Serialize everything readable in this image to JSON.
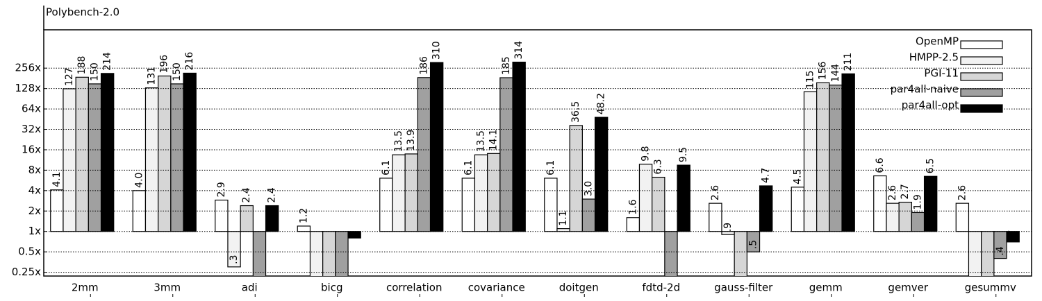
{
  "chart_data": {
    "type": "bar",
    "title": "Polybench-2.0",
    "log_scale": true,
    "log_base": 2,
    "grid": true,
    "legend": "upper right",
    "categories": [
      "2mm",
      "3mm",
      "adi",
      "bicg",
      "correlation",
      "covariance",
      "doitgen",
      "fdtd-2d",
      "gauss-filter",
      "gemm",
      "gemver",
      "gesummv"
    ],
    "series": [
      {
        "name": "OpenMP",
        "color": "#ffffff",
        "values": [
          4.1,
          4.0,
          2.9,
          1.2,
          6.1,
          6.1,
          6.1,
          1.6,
          2.6,
          4.5,
          6.6,
          2.6
        ],
        "value_labels": [
          "4.1",
          "4.0",
          "2.9",
          "1.2",
          "6.1",
          "6.1",
          "6.1",
          "1.6",
          "2.6",
          "4.5",
          "6.6",
          "2.6"
        ]
      },
      {
        "name": "HMPP-2.5",
        "color": "#f2f2f2",
        "values": [
          127,
          131,
          0.3,
          0.2,
          13.5,
          13.5,
          1.1,
          9.8,
          0.9,
          115,
          2.6,
          0.2
        ],
        "value_labels": [
          "127",
          "131",
          ".3",
          null,
          "13.5",
          "13.5",
          "1.1",
          "9.8",
          ".9",
          "115",
          "2.6",
          null
        ]
      },
      {
        "name": "PGI-11",
        "color": "#d6d6d6",
        "values": [
          188,
          196,
          2.4,
          0.2,
          13.9,
          14.1,
          36.5,
          6.3,
          0.2,
          156,
          2.7,
          0.2
        ],
        "value_labels": [
          "188",
          "196",
          "2.4",
          null,
          "13.9",
          "14.1",
          "36.5",
          "6.3",
          null,
          "156",
          "2.7",
          null
        ]
      },
      {
        "name": "par4all-naive",
        "color": "#a0a0a0",
        "values": [
          150,
          150,
          0.2,
          0.2,
          186,
          185,
          3.0,
          0.2,
          0.5,
          144,
          1.9,
          0.4
        ],
        "value_labels": [
          "150",
          "150",
          null,
          null,
          "186",
          "185",
          "3.0",
          null,
          ".5",
          "144",
          "1.9",
          ".4"
        ]
      },
      {
        "name": "par4all-opt",
        "color": "#000000",
        "values": [
          214,
          216,
          2.4,
          0.8,
          310,
          314,
          48.2,
          9.5,
          4.7,
          211,
          6.5,
          0.7
        ],
        "value_labels": [
          "214",
          "216",
          "2.4",
          null,
          "310",
          "314",
          "48.2",
          "9.5",
          "4.7",
          "211",
          "6.5",
          ".7"
        ]
      }
    ],
    "ylim": [
      0.22,
      940
    ],
    "yticks": [
      {
        "value": 0.25,
        "label": "0.25x"
      },
      {
        "value": 0.5,
        "label": "0.5x"
      },
      {
        "value": 1,
        "label": "1x"
      },
      {
        "value": 2,
        "label": "2x"
      },
      {
        "value": 4,
        "label": "4x"
      },
      {
        "value": 8,
        "label": "8x"
      },
      {
        "value": 16,
        "label": "16x"
      },
      {
        "value": 32,
        "label": "32x"
      },
      {
        "value": 64,
        "label": "64x"
      },
      {
        "value": 128,
        "label": "128x"
      },
      {
        "value": 256,
        "label": "256x"
      }
    ]
  }
}
